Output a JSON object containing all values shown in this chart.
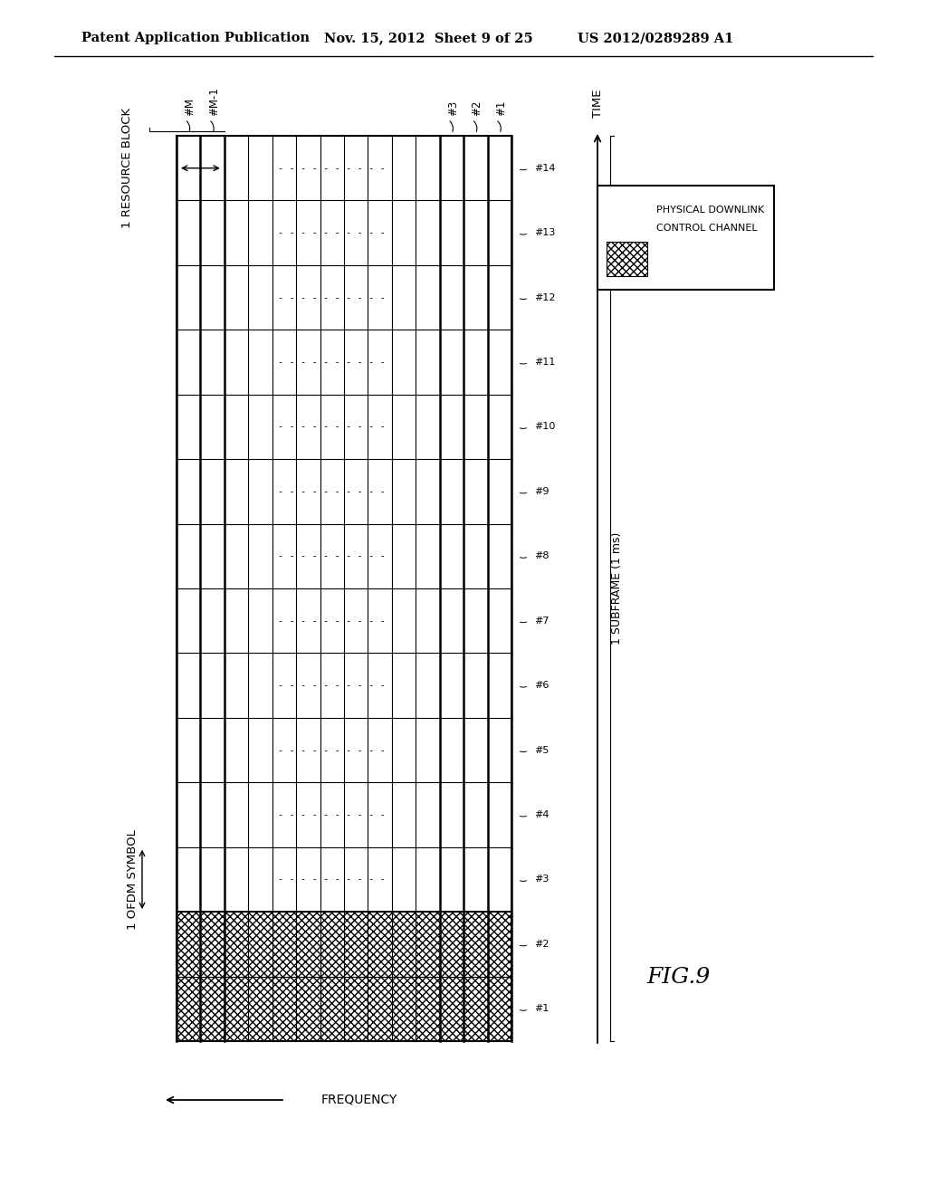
{
  "title_left": "Patent Application Publication",
  "title_mid": "Nov. 15, 2012  Sheet 9 of 25",
  "title_right": "US 2012/0289289 A1",
  "fig_label": "FIG.9",
  "bg_color": "#ffffff",
  "num_time_rows": 14,
  "num_freq_cols": 14,
  "pdcch_rows": 2,
  "time_labels": [
    "#1",
    "#2",
    "#3",
    "#4",
    "#5",
    "#6",
    "#7",
    "#8",
    "#9",
    "#10",
    "#11",
    "#12",
    "#13",
    "#14"
  ],
  "freq_col_labels_left": [
    "#M",
    "#M-1"
  ],
  "freq_col_labels_right": [
    "#3",
    "#2",
    "#1"
  ],
  "subframe_label": "1 SUBFRAME (1 ms)",
  "time_label": "TIME",
  "freq_label": "FREQUENCY",
  "ofdm_label": "1 OFDM SYMBOL",
  "resource_block_label": "1 RESOURCE BLOCK",
  "legend_line1": "PHYSICAL DOWNLINK",
  "legend_line2": "CONTROL CHANNEL"
}
